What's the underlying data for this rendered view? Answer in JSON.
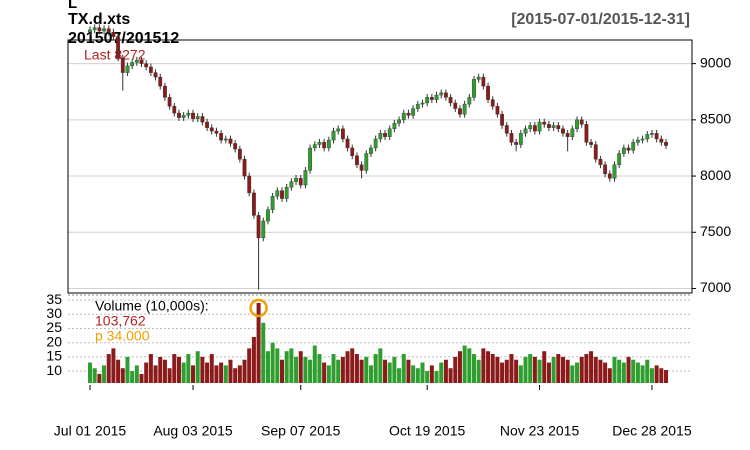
{
  "chart_data": {
    "type": "candlestick",
    "corner_text": "L",
    "title": "TX.d.xts",
    "subtitle": "201507/201512",
    "date_range": "[2015-07-01/2015-12-31]",
    "last_label": "Last 8272",
    "up_color": "#2e9e2e",
    "down_color": "#8b1a1a",
    "ylim": [
      6960,
      9210
    ],
    "yticks": [
      7000,
      7500,
      8000,
      8500,
      9000
    ],
    "grid": true,
    "xlim": [
      0,
      123
    ],
    "xticks": [
      {
        "value": 0,
        "label": "Jul 01 2015"
      },
      {
        "value": 22,
        "label": "Aug 03 2015"
      },
      {
        "value": 45,
        "label": "Sep 07 2015"
      },
      {
        "value": 72,
        "label": "Oct 19 2015"
      },
      {
        "value": 96,
        "label": "Nov 23 2015"
      },
      {
        "value": 120,
        "label": "Dec 28 2015"
      }
    ],
    "open": [
      9280,
      9300,
      9320,
      9290,
      9310,
      9280,
      9240,
      9050,
      8920,
      8980,
      9010,
      9030,
      9000,
      8970,
      8920,
      8880,
      8800,
      8700,
      8620,
      8560,
      8520,
      8540,
      8560,
      8510,
      8530,
      8480,
      8430,
      8400,
      8380,
      8320,
      8330,
      8290,
      8240,
      8150,
      8000,
      7850,
      7650,
      7450,
      7600,
      7700,
      7820,
      7870,
      7800,
      7900,
      7950,
      7980,
      7920,
      8050,
      8250,
      8280,
      8300,
      8250,
      8320,
      8400,
      8420,
      8330,
      8250,
      8180,
      8100,
      8050,
      8200,
      8250,
      8330,
      8380,
      8350,
      8420,
      8470,
      8500,
      8560,
      8540,
      8600,
      8640,
      8650,
      8700,
      8680,
      8720,
      8740,
      8700,
      8650,
      8600,
      8550,
      8640,
      8700,
      8860,
      8880,
      8800,
      8680,
      8620,
      8550,
      8450,
      8380,
      8300,
      8280,
      8380,
      8420,
      8450,
      8400,
      8480,
      8460,
      8430,
      8450,
      8420,
      8380,
      8350,
      8420,
      8500,
      8460,
      8300,
      8280,
      8150,
      8100,
      8020,
      7980,
      8100,
      8200,
      8250,
      8230,
      8300,
      8320,
      8330,
      8370,
      8380,
      8330,
      8300
    ],
    "high": [
      9330,
      9350,
      9350,
      9340,
      9340,
      9310,
      9270,
      9080,
      9010,
      9040,
      9060,
      9060,
      9030,
      9000,
      8950,
      8910,
      8830,
      8730,
      8650,
      8590,
      8570,
      8590,
      8590,
      8560,
      8560,
      8510,
      8460,
      8430,
      8410,
      8360,
      8360,
      8320,
      8270,
      8180,
      8030,
      7880,
      7680,
      7630,
      7730,
      7850,
      7900,
      7900,
      7930,
      7980,
      8010,
      8010,
      8080,
      8280,
      8310,
      8330,
      8330,
      8350,
      8430,
      8450,
      8450,
      8360,
      8280,
      8210,
      8130,
      8230,
      8280,
      8360,
      8410,
      8410,
      8450,
      8500,
      8530,
      8590,
      8590,
      8630,
      8670,
      8680,
      8730,
      8730,
      8750,
      8770,
      8770,
      8730,
      8680,
      8630,
      8670,
      8730,
      8890,
      8910,
      8910,
      8830,
      8710,
      8650,
      8580,
      8480,
      8410,
      8330,
      8410,
      8450,
      8480,
      8480,
      8510,
      8510,
      8490,
      8480,
      8480,
      8450,
      8410,
      8450,
      8530,
      8530,
      8490,
      8330,
      8310,
      8180,
      8130,
      8050,
      8130,
      8230,
      8280,
      8280,
      8330,
      8350,
      8360,
      8400,
      8410,
      8410,
      8360,
      8330
    ],
    "low": [
      9250,
      9270,
      9260,
      9260,
      9250,
      9210,
      9020,
      8760,
      8890,
      8950,
      8980,
      8970,
      8940,
      8890,
      8850,
      8770,
      8670,
      8590,
      8530,
      8490,
      8490,
      8510,
      8480,
      8480,
      8450,
      8400,
      8370,
      8350,
      8290,
      8290,
      8260,
      8210,
      8120,
      7970,
      7820,
      7620,
      6990,
      7420,
      7570,
      7670,
      7790,
      7770,
      7770,
      7870,
      7920,
      7890,
      7890,
      8020,
      8220,
      8250,
      8220,
      8220,
      8290,
      8370,
      8300,
      8220,
      8150,
      8070,
      7980,
      8020,
      8170,
      8220,
      8300,
      8320,
      8320,
      8390,
      8440,
      8470,
      8510,
      8510,
      8570,
      8610,
      8620,
      8650,
      8650,
      8690,
      8670,
      8620,
      8570,
      8520,
      8520,
      8610,
      8670,
      8830,
      8770,
      8650,
      8590,
      8520,
      8420,
      8350,
      8270,
      8220,
      8250,
      8350,
      8390,
      8370,
      8370,
      8430,
      8400,
      8400,
      8390,
      8350,
      8220,
      8320,
      8390,
      8430,
      8270,
      8250,
      8120,
      8070,
      7990,
      7950,
      7950,
      8070,
      8170,
      8200,
      8200,
      8270,
      8290,
      8300,
      8340,
      8300,
      8270,
      8242
    ],
    "close": [
      9300,
      9320,
      9290,
      9310,
      9280,
      9240,
      9050,
      8920,
      8980,
      9010,
      9030,
      9000,
      8970,
      8920,
      8880,
      8800,
      8700,
      8620,
      8560,
      8520,
      8540,
      8560,
      8510,
      8530,
      8480,
      8430,
      8400,
      8380,
      8320,
      8330,
      8290,
      8240,
      8150,
      8000,
      7850,
      7650,
      7450,
      7600,
      7700,
      7820,
      7870,
      7800,
      7900,
      7950,
      7980,
      7920,
      8050,
      8250,
      8280,
      8300,
      8250,
      8320,
      8400,
      8420,
      8330,
      8250,
      8180,
      8100,
      8050,
      8200,
      8250,
      8330,
      8380,
      8350,
      8420,
      8470,
      8500,
      8560,
      8540,
      8600,
      8640,
      8650,
      8700,
      8680,
      8720,
      8740,
      8700,
      8650,
      8600,
      8550,
      8640,
      8700,
      8860,
      8880,
      8800,
      8680,
      8620,
      8550,
      8450,
      8380,
      8300,
      8280,
      8380,
      8420,
      8450,
      8400,
      8480,
      8460,
      8430,
      8450,
      8420,
      8380,
      8350,
      8420,
      8500,
      8460,
      8300,
      8280,
      8150,
      8100,
      8020,
      7980,
      8100,
      8200,
      8250,
      8230,
      8300,
      8320,
      8330,
      8370,
      8380,
      8330,
      8300,
      8272
    ],
    "volume": {
      "label": "Volume (10,000s):",
      "ylim": [
        5.8,
        36.8
      ],
      "yticks": [
        10,
        15,
        20,
        25,
        30,
        35
      ],
      "values": [
        13,
        11,
        9,
        12,
        16,
        18,
        14,
        11,
        15,
        10,
        12,
        9,
        13,
        16,
        12,
        15,
        14,
        11,
        16,
        15,
        13,
        16,
        12,
        17,
        15,
        13,
        16,
        12,
        13,
        12,
        14,
        11,
        12,
        14,
        18,
        22,
        34,
        27,
        17,
        20,
        18,
        14,
        17,
        18,
        15,
        17,
        15,
        14,
        19,
        16,
        13,
        12,
        16,
        14,
        15,
        17,
        18,
        16,
        14,
        15,
        12,
        16,
        18,
        14,
        13,
        15,
        11,
        16,
        14,
        12,
        11,
        13,
        10,
        12,
        10,
        13,
        14,
        11,
        15,
        17,
        19,
        18,
        16,
        14,
        18,
        17,
        16,
        15,
        13,
        14,
        16,
        14,
        12,
        15,
        16,
        15,
        14,
        17,
        13,
        15,
        16,
        15,
        14,
        12,
        13,
        15,
        16,
        17,
        15,
        14,
        13,
        11,
        15,
        14,
        13,
        15,
        14,
        13,
        12,
        14,
        11,
        12,
        11,
        10.3762
      ],
      "last": {
        "value": 10.3762,
        "label": "103,762"
      },
      "highlight": {
        "index": 36,
        "label": "p  34.000",
        "color": "#f0a000"
      }
    }
  }
}
